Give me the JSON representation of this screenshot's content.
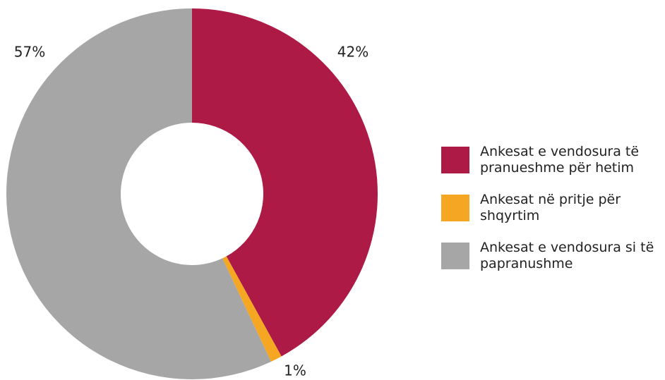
{
  "chart_data": {
    "type": "donut",
    "categories": [
      "Ankesat e vendosura të pranueshme për hetim",
      "Ankesat në pritje për shqyrtim",
      "Ankesat e vendosura si të papranushme"
    ],
    "values": [
      42,
      1,
      57
    ],
    "value_labels": [
      "42%",
      "1%",
      "57%"
    ],
    "colors": [
      "#ad1a45",
      "#f5a623",
      "#a6a6a6"
    ],
    "legend": "right"
  }
}
